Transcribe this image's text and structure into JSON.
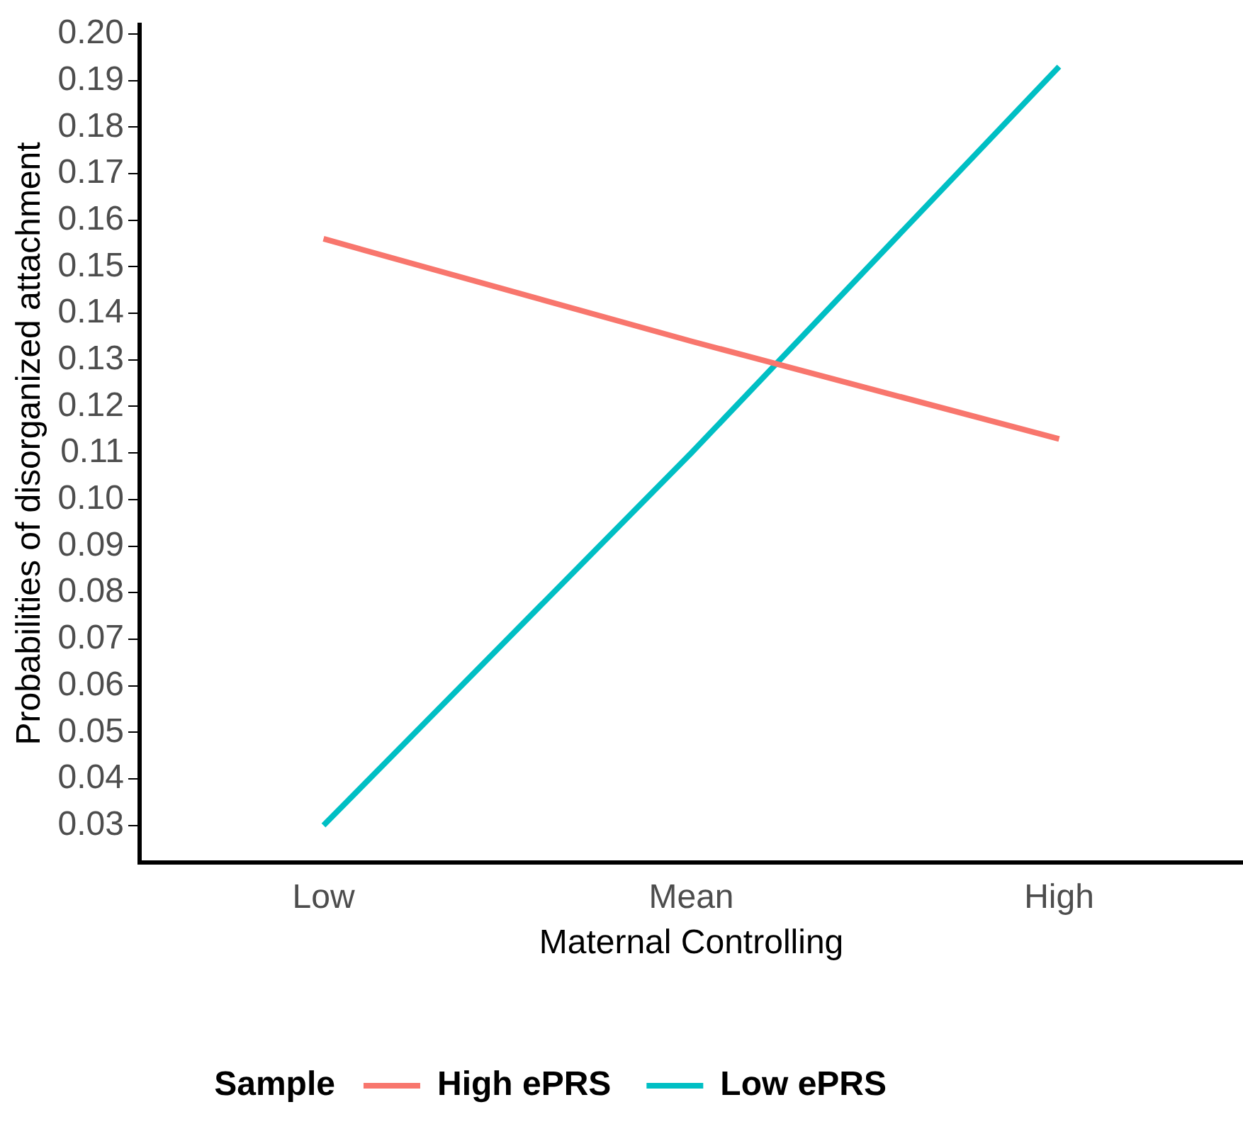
{
  "chart_data": {
    "type": "line",
    "xlabel": "Maternal Controlling",
    "ylabel": "Probabilities of disorganized attachment",
    "legend_title": "Sample",
    "categories": [
      "Low",
      "Mean",
      "High"
    ],
    "series": [
      {
        "name": "High ePRS",
        "color": "#f8766d",
        "values": [
          0.156,
          0.134,
          0.113
        ]
      },
      {
        "name": "Low ePRS",
        "color": "#00bfc4",
        "values": [
          0.03,
          0.11,
          0.193
        ]
      }
    ],
    "ylim": [
      0.022,
      0.202
    ],
    "yticks": [
      0.03,
      0.04,
      0.05,
      0.06,
      0.07,
      0.08,
      0.09,
      {
        "value": 0.1,
        "label": "0.10"
      },
      0.11,
      0.12,
      0.13,
      0.14,
      0.15,
      0.16,
      0.17,
      0.18,
      0.19,
      {
        "value": 0.2,
        "label": "0.20"
      }
    ],
    "grid": false,
    "legend": "bottom",
    "marker": "none",
    "line_style": "solid"
  }
}
